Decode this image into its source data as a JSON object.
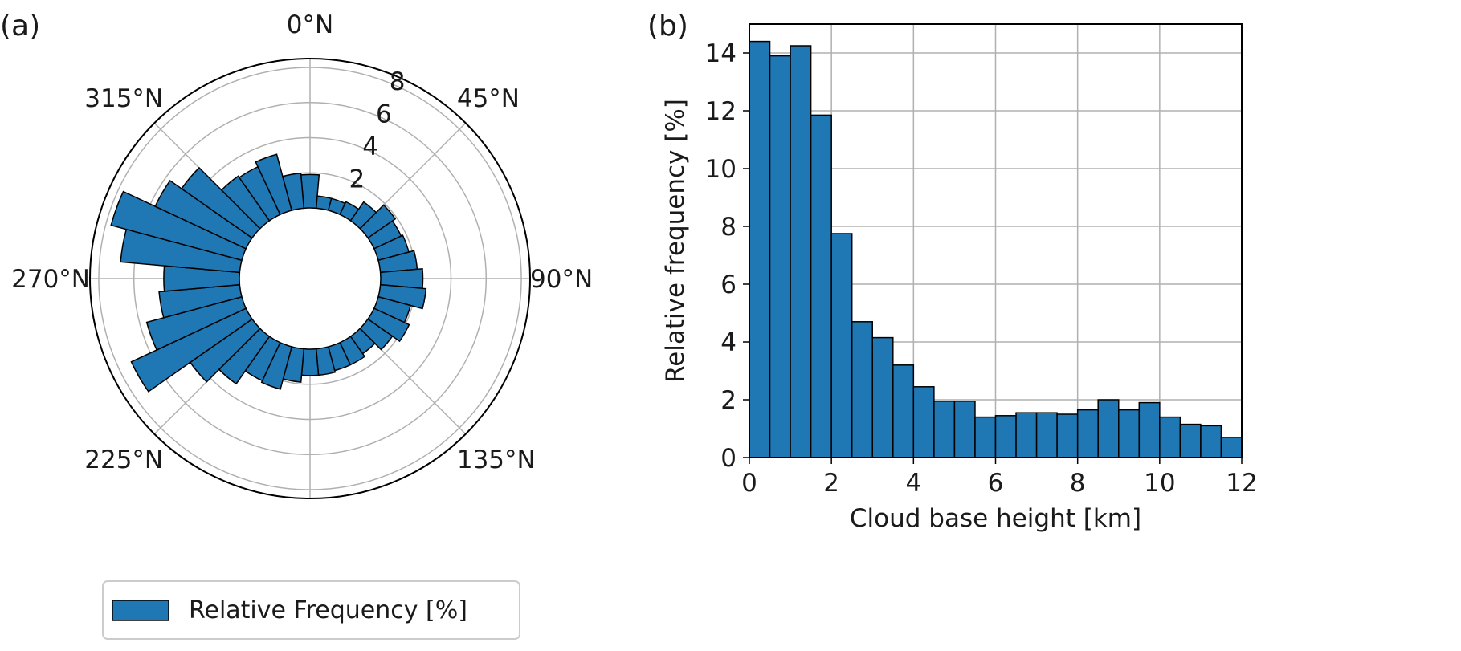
{
  "bar_color": "#1f77b4",
  "edge_color": "#000000",
  "grid_color": "#b0b0b0",
  "chart_data": [
    {
      "panel_label": "(a)",
      "type": "bar",
      "polar": true,
      "direction_labels": [
        "0°N",
        "45°N",
        "90°N",
        "135°N",
        "225°N",
        "270°N",
        "315°N"
      ],
      "radial_ticks": [
        2,
        4,
        6,
        8
      ],
      "rlim": [
        0,
        8.5
      ],
      "bin_width_deg": 10,
      "directions_deg": [
        0,
        10,
        20,
        30,
        40,
        50,
        60,
        70,
        80,
        90,
        100,
        110,
        120,
        130,
        140,
        150,
        160,
        170,
        180,
        190,
        200,
        210,
        220,
        230,
        240,
        250,
        260,
        270,
        280,
        290,
        300,
        310,
        320,
        330,
        340,
        350
      ],
      "values": [
        1.9,
        0.7,
        0.7,
        0.8,
        1.3,
        1.9,
        1.7,
        1.8,
        2.1,
        2.4,
        2.6,
        1.9,
        2.2,
        1.7,
        1.2,
        1.4,
        1.4,
        1.5,
        1.5,
        1.9,
        2.5,
        2.4,
        3.3,
        4.3,
        7.2,
        5.6,
        4.6,
        4.3,
        6.8,
        7.7,
        5.7,
        4.9,
        3.1,
        3.0,
        3.3,
        2.0
      ],
      "legend": "Relative Frequency [%]",
      "legend_position": "bottom-center"
    },
    {
      "panel_label": "(b)",
      "type": "bar",
      "histogram": true,
      "bin_width": 0.5,
      "bin_starts": [
        0,
        0.5,
        1,
        1.5,
        2,
        2.5,
        3,
        3.5,
        4,
        4.5,
        5,
        5.5,
        6,
        6.5,
        7,
        7.5,
        8,
        8.5,
        9,
        9.5,
        10,
        10.5,
        11,
        11.5
      ],
      "values": [
        14.4,
        13.9,
        14.25,
        11.85,
        7.75,
        4.7,
        4.15,
        3.2,
        2.45,
        1.95,
        1.95,
        1.4,
        1.45,
        1.55,
        1.55,
        1.5,
        1.65,
        2.0,
        1.65,
        1.9,
        1.4,
        1.15,
        1.1,
        0.7
      ],
      "xlabel": "Cloud base height [km]",
      "ylabel": "Relative frequency [%]",
      "xlim": [
        0,
        12
      ],
      "ylim": [
        0,
        15
      ],
      "xticks": [
        0,
        2,
        4,
        6,
        8,
        10,
        12
      ],
      "yticks": [
        0,
        2,
        4,
        6,
        8,
        10,
        12,
        14
      ],
      "grid": true
    }
  ]
}
